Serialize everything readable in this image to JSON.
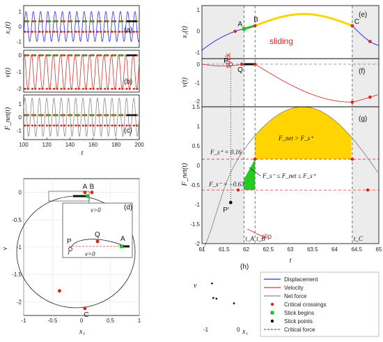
{
  "chart_data": [
    {
      "id": "abc",
      "type": "line",
      "panels": [
        {
          "tag": "(a)",
          "ylabel": "x₁(t)",
          "yticks": [
            "1",
            "0",
            "-1"
          ],
          "ylim": [
            -1.4,
            1.4
          ]
        },
        {
          "tag": "(b)",
          "ylabel": "v(t)",
          "yticks": [
            "0",
            "-1",
            "-2"
          ],
          "ylim": [
            -2.2,
            0.3
          ]
        },
        {
          "tag": "(c)",
          "ylabel": "F_net(t)",
          "yticks": [
            "1",
            "0",
            "-1"
          ],
          "ylim": [
            -1.7,
            1.7
          ]
        }
      ],
      "xlabel": "t",
      "xticks": [
        "100",
        "120",
        "140",
        "160",
        "180",
        "200"
      ],
      "xlim": [
        100,
        200
      ],
      "period": 6.28,
      "series": [
        {
          "name": "Displacement",
          "color": "#2b2bff"
        },
        {
          "name": "Velocity",
          "color": "#e03030"
        },
        {
          "name": "Net force",
          "color": "#888888"
        }
      ]
    },
    {
      "id": "d",
      "type": "scatter",
      "tag": "(d)",
      "xlabel": "x₁",
      "ylabel": "v",
      "xticks": [
        "-1",
        "-0.5",
        "0",
        "0.5",
        "1"
      ],
      "yticks": [
        "0",
        "-0.5",
        "-1",
        "-1.5",
        "-2"
      ],
      "xlim": [
        -1,
        1
      ],
      "ylim": [
        -2.25,
        0.25
      ],
      "points": [
        {
          "label": "A",
          "x": 0.06,
          "y": 0.0
        },
        {
          "label": "B",
          "x": 0.18,
          "y": 0.0
        },
        {
          "label": "",
          "x": -0.38,
          "y": -1.8
        },
        {
          "label": "C",
          "x": 0.06,
          "y": -2.12
        }
      ],
      "inset": {
        "label_top": "v>0",
        "label_bottom": "v=0",
        "points": [
          "P",
          "Q",
          "A"
        ]
      }
    },
    {
      "id": "efg",
      "type": "line",
      "xlabel": "t",
      "xticks": [
        "61",
        "61.5",
        "62",
        "62.5",
        "63",
        "63.5",
        "64",
        "64.5",
        "65"
      ],
      "xlim": [
        61,
        65
      ],
      "panels": [
        {
          "tag": "(e)",
          "ylabel": "x₁(t)",
          "yticks": [
            "1",
            "0",
            "-1"
          ],
          "ylim": [
            -1.3,
            1.2
          ]
        },
        {
          "tag": "(f)",
          "ylabel": "v(t)",
          "yticks": [
            "0",
            "-1",
            "-2"
          ],
          "ylim": [
            -2.3,
            0.3
          ]
        },
        {
          "tag": "(g)",
          "ylabel": "F_net(t)",
          "yticks": [
            "1.5",
            "1",
            "0.5",
            "0",
            "-0.5",
            "-1",
            "-1.5",
            "-2"
          ],
          "ylim": [
            -2,
            1.5
          ]
        }
      ],
      "events": [
        {
          "label": "t_A",
          "t": 61.95
        },
        {
          "label": "t_B",
          "t": 62.2
        },
        {
          "label": "t_C",
          "t": 64.4
        }
      ],
      "region_labels": {
        "stick": "stick",
        "sliding": "sliding",
        "slip": "slip"
      },
      "point_labels": [
        "A",
        "B",
        "C",
        "P",
        "Q",
        "P'"
      ],
      "critical_force": {
        "upper_label": "F_s⁺ = 0.16",
        "lower_label": "F_s⁻ = −0.63",
        "upper": 0.16,
        "lower": -0.63
      },
      "region_annotations": {
        "above": "F_net > F_s⁺",
        "between": "F_s⁻ ≤ F_net ≤ F_s⁺"
      }
    },
    {
      "id": "h",
      "type": "scatter",
      "tag": "(h)",
      "xlabel": "x₁",
      "ylabel": "v",
      "xticks": [
        "-1",
        "0"
      ],
      "points": [
        {
          "x": -0.95,
          "y": -0.5
        },
        {
          "x": -0.93,
          "y": -0.9
        },
        {
          "x": -0.88,
          "y": -0.92
        },
        {
          "x": -0.6,
          "y": -1.05
        }
      ]
    }
  ],
  "legend": [
    {
      "label": "Displacement",
      "kind": "line",
      "color": "#2b2bff"
    },
    {
      "label": "Velocity",
      "kind": "line",
      "color": "#e03030"
    },
    {
      "label": "Net force",
      "kind": "line",
      "color": "#888888"
    },
    {
      "label": "Critical crossings",
      "kind": "dot",
      "color": "#d42a1e"
    },
    {
      "label": "Stick begins",
      "kind": "square",
      "color": "#22bb22"
    },
    {
      "label": "Stick points",
      "kind": "dot",
      "color": "#000000"
    },
    {
      "label": "Critical force",
      "kind": "dash",
      "color": "#e03030"
    }
  ]
}
